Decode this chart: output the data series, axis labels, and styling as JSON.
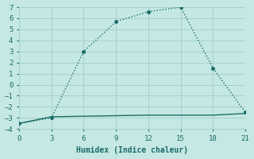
{
  "xlabel": "Humidex (Indice chaleur)",
  "bg_color": "#c5e8e5",
  "grid_color": "#a8d0cc",
  "line_color": "#1a6b65",
  "line1_x": [
    0,
    3,
    6,
    9,
    12,
    15,
    18,
    21
  ],
  "line1_y": [
    -3.5,
    -3.0,
    3.0,
    5.7,
    6.6,
    7.0,
    1.5,
    -2.5
  ],
  "line2_x": [
    0,
    3,
    6,
    9,
    12,
    15,
    18,
    21
  ],
  "line2_y": [
    -3.5,
    -2.9,
    -2.85,
    -2.8,
    -2.75,
    -2.75,
    -2.75,
    -2.6
  ],
  "xlim": [
    0,
    21
  ],
  "ylim": [
    -4,
    7
  ],
  "xticks": [
    0,
    3,
    6,
    9,
    12,
    15,
    18,
    21
  ],
  "yticks": [
    -4,
    -3,
    -2,
    -1,
    0,
    1,
    2,
    3,
    4,
    5,
    6,
    7
  ]
}
